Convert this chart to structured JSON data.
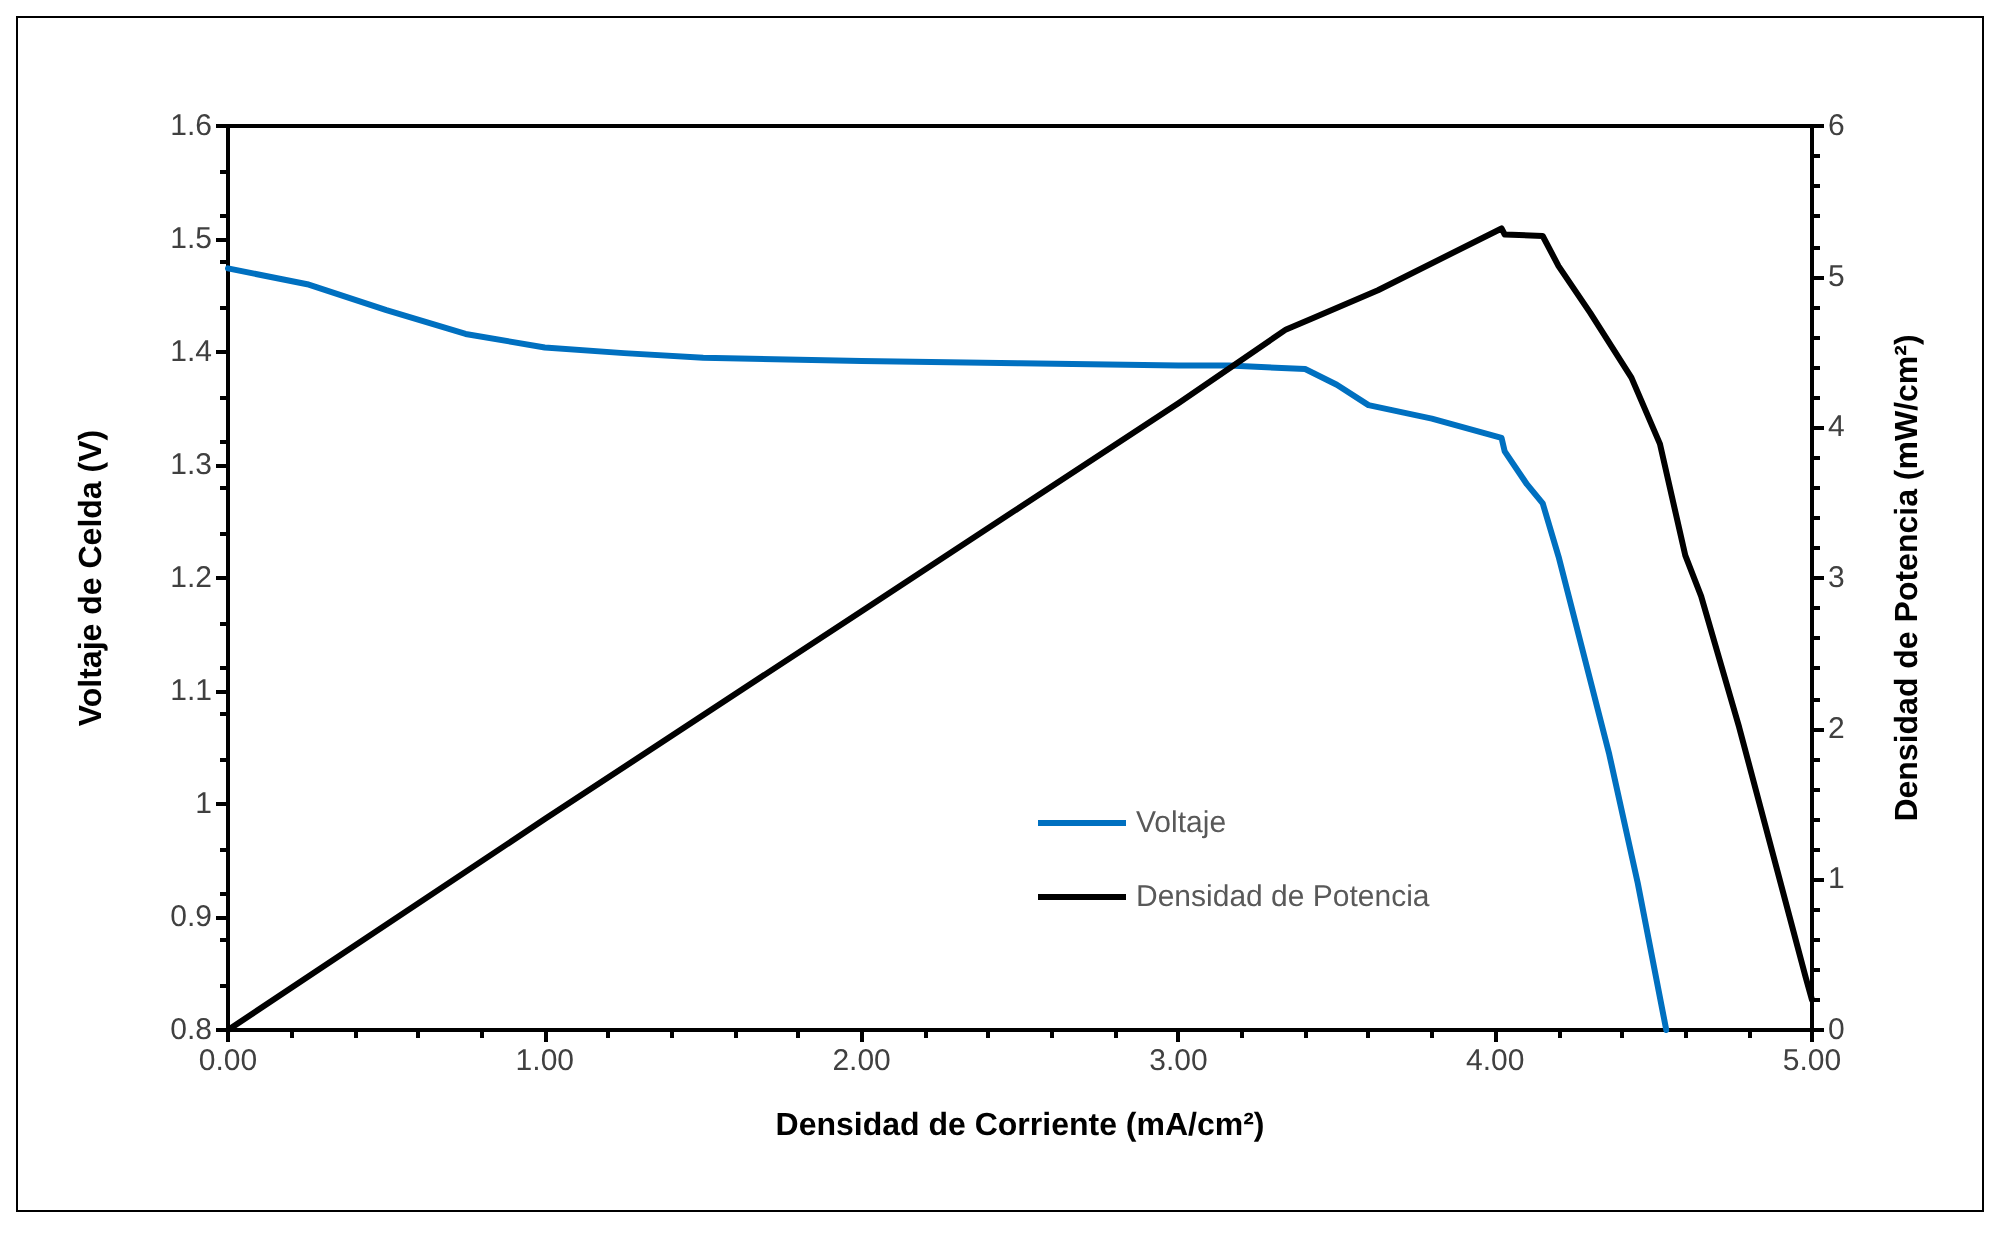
{
  "chart_data": {
    "type": "line",
    "xlabel": "Densidad de Corriente (mA/cm²)",
    "ylabel": "Voltaje de Celda (V)",
    "y2label": "Densidad de Potencia (mW/cm²)",
    "series": [
      {
        "name": "Voltaje",
        "color": "#0070c0",
        "x": [
          0,
          0.25,
          0.5,
          0.75,
          1.0,
          1.25,
          1.5,
          2.0,
          2.5,
          3.0,
          3.16,
          3.4,
          3.5,
          3.6,
          3.8,
          4.02,
          4.03,
          4.1,
          4.15,
          4.2,
          4.36,
          4.45,
          4.54
        ],
        "values": [
          1.474,
          1.46,
          1.437,
          1.416,
          1.404,
          1.399,
          1.395,
          1.392,
          1.39,
          1.388,
          1.388,
          1.385,
          1.371,
          1.353,
          1.341,
          1.324,
          1.312,
          1.283,
          1.266,
          1.219,
          1.044,
          0.93,
          0.8
        ]
      },
      {
        "name": "Densidad de Potencia",
        "color": "#000000",
        "axis": "y2",
        "x": [
          0,
          1.0,
          2.0,
          3.0,
          3.34,
          3.42,
          3.63,
          4.02,
          4.03,
          4.15,
          4.2,
          4.3,
          4.43,
          4.52,
          4.6,
          4.65,
          4.77,
          4.98,
          5.0
        ],
        "values": [
          0,
          1.4,
          2.78,
          4.16,
          4.65,
          4.72,
          4.91,
          5.32,
          5.28,
          5.27,
          5.07,
          4.76,
          4.33,
          3.89,
          3.15,
          2.88,
          2.01,
          0.35,
          0.2
        ]
      }
    ],
    "xlim": [
      0,
      5
    ],
    "xticks": [
      {
        "value": 0,
        "label": "0.00"
      },
      {
        "value": 1,
        "label": "1.00"
      },
      {
        "value": 2,
        "label": "2.00"
      },
      {
        "value": 3,
        "label": "3.00"
      },
      {
        "value": 4,
        "label": "4.00"
      },
      {
        "value": 5,
        "label": "5.00"
      }
    ],
    "ylim": [
      0.8,
      1.6
    ],
    "yticks": [
      0.8,
      0.9,
      1,
      1.1,
      1.2,
      1.3,
      1.4,
      1.5,
      1.6
    ],
    "y2lim": [
      0,
      6
    ],
    "y2ticks": [
      0,
      1,
      2,
      3,
      4,
      5,
      6
    ],
    "grid": false,
    "legend": "bottom",
    "marker": "none",
    "line_style": "solid"
  }
}
